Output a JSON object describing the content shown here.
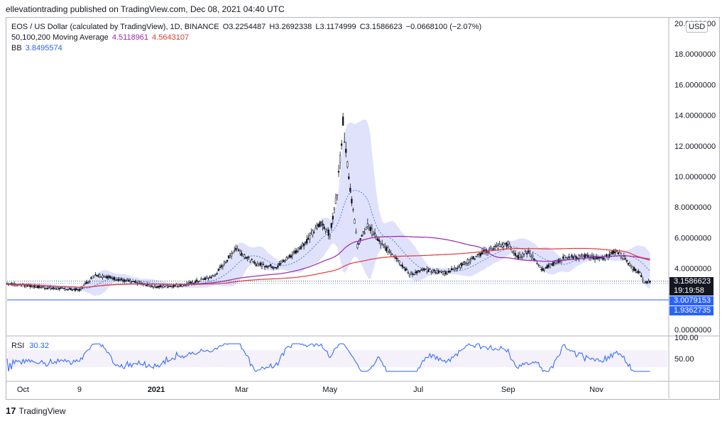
{
  "publisher_line": "ellevationtrading published on TradingView.com, Dec 08, 2021 04:40 UTC",
  "footer_brand": "TradingView",
  "colors": {
    "ma_fast": "#9c27b0",
    "ma_slow": "#e53935",
    "bb": "#2962ff",
    "bb_fill": "#c5cbf5",
    "price_line": "#131722",
    "rsi": "#2962ff"
  },
  "legend": {
    "symbol": "EOS / US Dollar (calculated by TradingView), 1D, BINANCE",
    "o": "O3.2254487",
    "h": "H3.2692338",
    "l": "L3.1174999",
    "c": "C3.1586623",
    "change": "−0.0668100 (−2.07%)",
    "ma_label": "50,100,200 Moving Average",
    "ma_fast_value": "4.5118961",
    "ma_slow_value": "4.5643107",
    "bb_label": "BB",
    "bb_value": "3.8495574"
  },
  "currency": "USD",
  "price_tag": {
    "value": "3.1586623",
    "countdown": "19:19:58"
  },
  "bb_lower_tag": "3.0079153",
  "ma_lower_tag": "1.9362735",
  "rsi": {
    "label": "RSI",
    "value": "30.32",
    "ticks": [
      "100.00",
      "50.00"
    ]
  },
  "chart_data": {
    "type": "line",
    "title": "EOS / US Dollar (calculated by TradingView), 1D, BINANCE",
    "y_axis_ticks": [
      "20.0000000",
      "18.0000000",
      "16.0000000",
      "14.0000000",
      "12.0000000",
      "10.0000000",
      "8.0000000",
      "6.0000000",
      "4.0000000",
      "2.0000000",
      "0.0000000"
    ],
    "ylim": [
      0,
      20
    ],
    "x_axis_ticks": [
      "Oct",
      "9",
      "2021",
      "Mar",
      "May",
      "Jul",
      "Sep",
      "Nov"
    ],
    "x": [
      "2020-09-20",
      "2020-10-01",
      "2020-10-20",
      "2020-11-09",
      "2020-11-20",
      "2020-12-10",
      "2021-01-01",
      "2021-01-20",
      "2021-02-10",
      "2021-02-25",
      "2021-03-10",
      "2021-03-25",
      "2021-04-05",
      "2021-04-15",
      "2021-04-25",
      "2021-05-01",
      "2021-05-06",
      "2021-05-10",
      "2021-05-14",
      "2021-05-20",
      "2021-05-27",
      "2021-06-05",
      "2021-06-15",
      "2021-06-25",
      "2021-07-05",
      "2021-07-20",
      "2021-08-05",
      "2021-08-20",
      "2021-09-01",
      "2021-09-07",
      "2021-09-15",
      "2021-09-25",
      "2021-10-10",
      "2021-10-25",
      "2021-11-05",
      "2021-11-15",
      "2021-11-25",
      "2021-12-01",
      "2021-12-04",
      "2021-12-08"
    ],
    "series": [
      {
        "name": "",
        "values": [
          3.0,
          2.9,
          2.7,
          2.6,
          3.6,
          3.2,
          2.8,
          2.9,
          3.5,
          5.3,
          4.3,
          4.1,
          4.9,
          5.8,
          7.0,
          6.2,
          9.0,
          13.5,
          10.0,
          5.5,
          6.8,
          5.6,
          4.8,
          3.6,
          3.9,
          3.7,
          4.5,
          5.3,
          5.6,
          4.7,
          5.1,
          3.9,
          4.7,
          4.8,
          4.6,
          5.2,
          4.1,
          3.7,
          3.0,
          3.16
        ]
      }
    ]
  }
}
